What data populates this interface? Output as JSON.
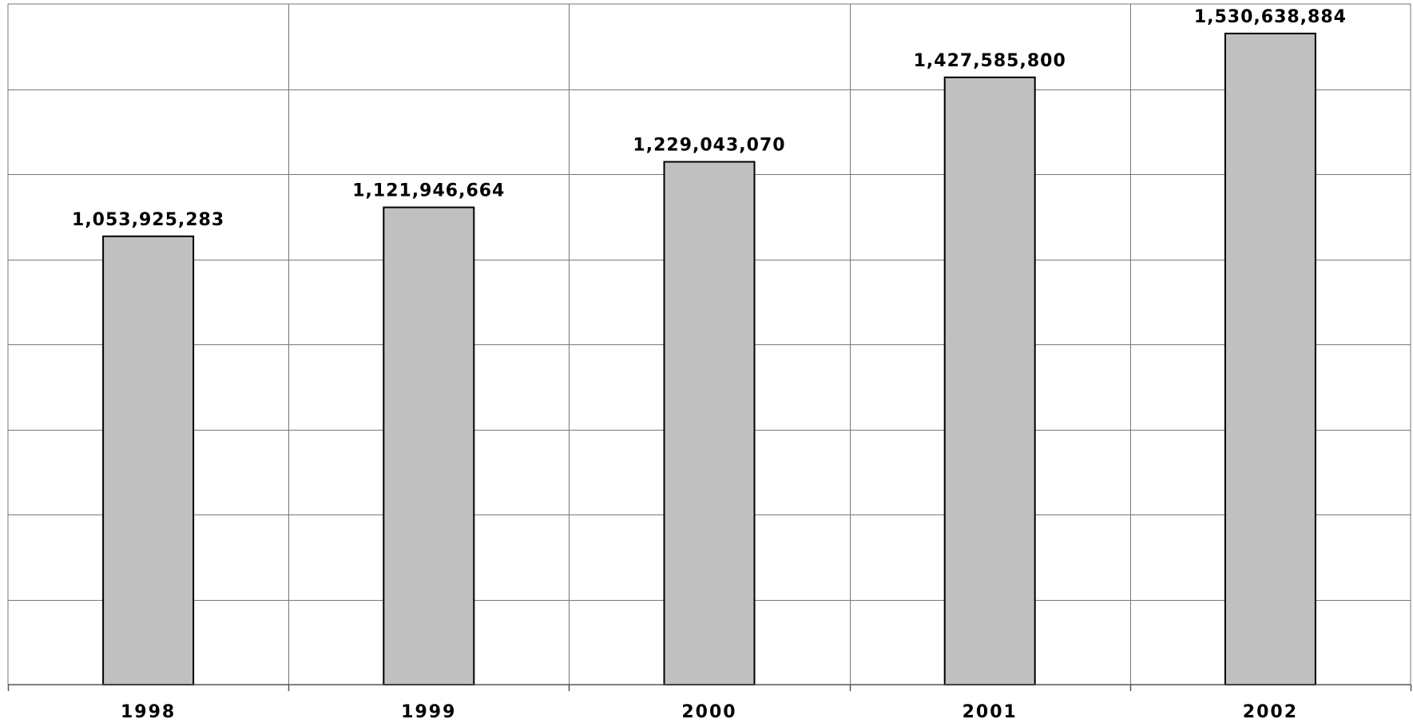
{
  "chart_data": {
    "type": "bar",
    "title": "",
    "xlabel": "",
    "ylabel": "",
    "categories": [
      "1998",
      "1999",
      "2000",
      "2001",
      "2002"
    ],
    "values": [
      1053925283,
      1121946664,
      1229043070,
      1427585800,
      1530638884
    ],
    "value_labels": [
      "1,053,925,283",
      "1,121,946,664",
      "1,229,043,070",
      "1,427,585,800",
      "1,530,638,884"
    ],
    "ylim": [
      0,
      1600000000
    ],
    "y_gridline_step": 200000000,
    "grid": true,
    "legend": "none",
    "colors": {
      "bar_fill": "#c0c0c0",
      "bar_stroke": "#000000",
      "gridline": "#777777"
    }
  }
}
